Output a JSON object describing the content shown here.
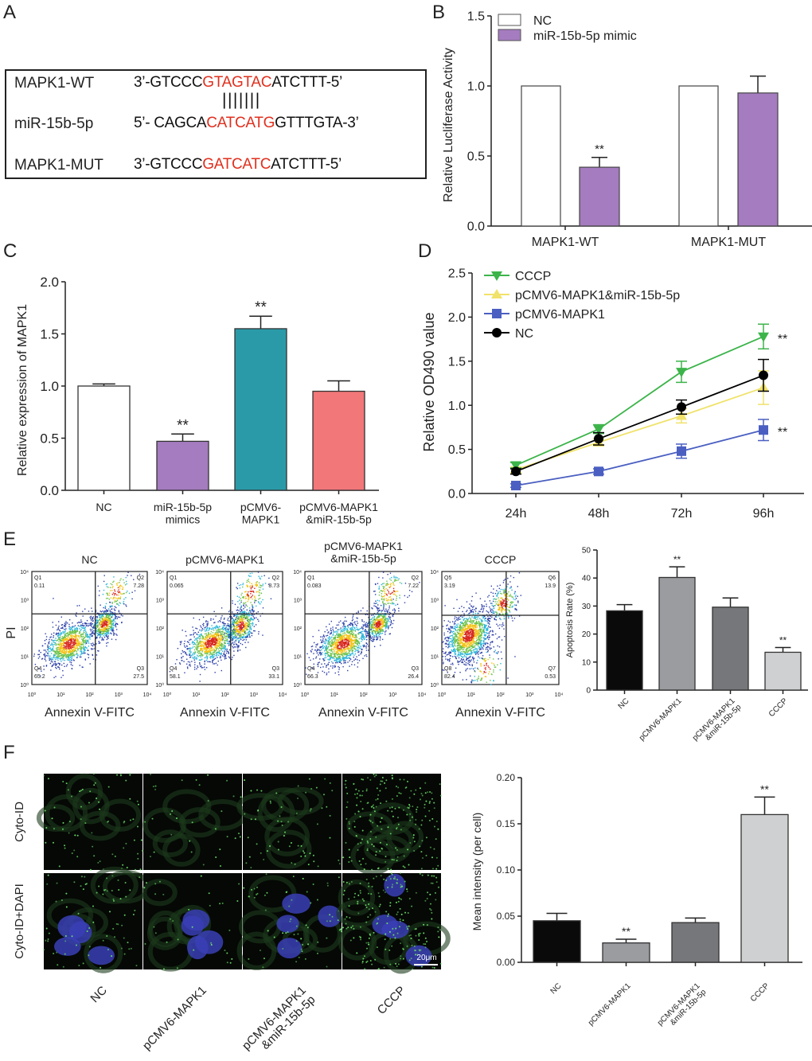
{
  "panel_labels": {
    "a": "A",
    "b": "B",
    "c": "C",
    "d": "D",
    "e": "E",
    "f": "F"
  },
  "sequences": [
    {
      "name": "MAPK1-WT",
      "prefix": "3’-GTCCC",
      "highlight": "GTAGTAC",
      "suffix": "ATCTTT-5’"
    },
    {
      "name": "miR-15b-5p",
      "prefix": "5’- CAGCA",
      "highlight": "CATCATG",
      "suffix": "GTTTGTA-3’"
    },
    {
      "name": "MAPK1-MUT",
      "prefix": "3’-GTCCC",
      "highlight": "GATCATC",
      "suffix": "ATCTTT-5’"
    }
  ],
  "pairing_marks": "|||||||",
  "colors": {
    "highlight": "#e0301e",
    "purple": "#a57cbf",
    "teal": "#2a9aa8",
    "salmon": "#f27779",
    "cccp": "#3cb44a",
    "combo": "#f0e26a",
    "mapk1": "#4a5fc1",
    "nc": "#000000"
  },
  "chart_data": [
    {
      "id": "B",
      "type": "bar",
      "ylabel": "Relative Lucliferase Activity",
      "ylim": [
        0,
        1.5
      ],
      "yticks": [
        "0.0",
        "0.5",
        "1.0",
        "1.5"
      ],
      "categories": [
        "MAPK1-WT",
        "MAPK1-MUT"
      ],
      "legend_position": "top-left",
      "series": [
        {
          "name": "NC",
          "values": [
            1.0,
            1.0
          ],
          "errors": [
            0,
            0
          ],
          "color": "#ffffff"
        },
        {
          "name": "miR-15b-5p mimic",
          "values": [
            0.42,
            0.95
          ],
          "errors": [
            0.07,
            0.12
          ],
          "color": "#a57cbf"
        }
      ],
      "significance": [
        {
          "category": "MAPK1-WT",
          "series": "miR-15b-5p mimic",
          "label": "**"
        }
      ]
    },
    {
      "id": "C",
      "type": "bar",
      "ylabel": "Relative expression of MAPK1",
      "ylim": [
        0,
        2.0
      ],
      "yticks": [
        "0.0",
        "0.5",
        "1.0",
        "1.5",
        "2.0"
      ],
      "categories": [
        "NC",
        "miR-15b-5p\nmimics",
        "pCMV6-\nMAPK1",
        "pCMV6-MAPK1\n&miR-15b-5p"
      ],
      "values": [
        1.0,
        0.47,
        1.55,
        0.95
      ],
      "errors": [
        0.02,
        0.07,
        0.12,
        0.1
      ],
      "colors": [
        "#ffffff",
        "#a57cbf",
        "#2a9aa8",
        "#f27779"
      ],
      "significance": [
        "",
        "**",
        "**",
        ""
      ]
    },
    {
      "id": "D",
      "type": "line",
      "ylabel": "Relative OD490 value",
      "ylim": [
        0,
        2.5
      ],
      "yticks": [
        "0.0",
        "0.5",
        "1.0",
        "1.5",
        "2.0",
        "2.5"
      ],
      "x": [
        "24h",
        "48h",
        "72h",
        "96h"
      ],
      "legend_position": "top-left",
      "series": [
        {
          "name": "CCCP",
          "values": [
            0.32,
            0.73,
            1.38,
            1.78
          ],
          "errors": [
            0.03,
            0.05,
            0.12,
            0.14
          ],
          "color": "#3cb44a",
          "marker": "triangle-down",
          "significance": "**"
        },
        {
          "name": "pCMV6-MAPK1&miR-15b-5p",
          "values": [
            0.27,
            0.58,
            0.88,
            1.2
          ],
          "errors": [
            0.03,
            0.04,
            0.08,
            0.19
          ],
          "color": "#f0e26a",
          "marker": "triangle-up",
          "significance": ""
        },
        {
          "name": "pCMV6-MAPK1",
          "values": [
            0.09,
            0.25,
            0.48,
            0.72
          ],
          "errors": [
            0.02,
            0.03,
            0.08,
            0.12
          ],
          "color": "#4a5fc1",
          "marker": "square",
          "significance": "**"
        },
        {
          "name": "NC",
          "values": [
            0.25,
            0.62,
            0.98,
            1.34
          ],
          "errors": [
            0.03,
            0.07,
            0.08,
            0.18
          ],
          "color": "#000000",
          "marker": "circle",
          "significance": ""
        }
      ]
    },
    {
      "id": "E",
      "type": "bar",
      "ylabel": "Apoptosis Rate (%)",
      "ylim": [
        0,
        50
      ],
      "yticks": [
        "0",
        "10",
        "20",
        "30",
        "40",
        "50"
      ],
      "categories": [
        "NC",
        "pCMV6-MAPK1",
        "pCMV6-MAPK1\n&miR-15b-5p",
        "CCCP"
      ],
      "values": [
        28.3,
        40.2,
        29.6,
        13.5
      ],
      "errors": [
        2.2,
        3.8,
        3.3,
        1.7
      ],
      "colors": [
        "#0a0a0a",
        "#9a9ca0",
        "#76777a",
        "#cfd0d2"
      ],
      "significance": [
        "",
        "**",
        "",
        "**"
      ]
    },
    {
      "id": "F",
      "type": "bar",
      "ylabel": "Mean intensity (per cell)",
      "ylim": [
        0,
        0.2
      ],
      "yticks": [
        "0.00",
        "0.05",
        "0.10",
        "0.15",
        "0.20"
      ],
      "categories": [
        "NC",
        "pCMV6-MAPK1",
        "pCMV6-MAPK1\n&miR-15b-5p",
        "CCCP"
      ],
      "values": [
        0.045,
        0.021,
        0.043,
        0.16
      ],
      "errors": [
        0.008,
        0.004,
        0.005,
        0.019
      ],
      "colors": [
        "#0a0a0a",
        "#9a9ca0",
        "#76777a",
        "#cfd0d2"
      ],
      "significance": [
        "",
        "**",
        "",
        "**"
      ]
    }
  ],
  "flow": {
    "y_label": "PI",
    "x_label": "Annexin V-FITC",
    "axis_ticks": [
      "10⁰",
      "10¹",
      "10²",
      "10³",
      "10⁴"
    ],
    "plots": [
      {
        "title": "NC",
        "quadrants": [
          {
            "name": "Q1",
            "value": "0.11"
          },
          {
            "name": "Q2",
            "value": "7.28"
          },
          {
            "name": "Q3",
            "value": "27.5"
          },
          {
            "name": "Q4",
            "value": "65.2"
          }
        ]
      },
      {
        "title": "pCMV6-MAPK1",
        "quadrants": [
          {
            "name": "Q1",
            "value": "0.065"
          },
          {
            "name": "Q2",
            "value": "8.73"
          },
          {
            "name": "Q3",
            "value": "33.1"
          },
          {
            "name": "Q4",
            "value": "58.1"
          }
        ]
      },
      {
        "title": "pCMV6-MAPK1\n&miR-15b-5p",
        "quadrants": [
          {
            "name": "Q1",
            "value": "0.083"
          },
          {
            "name": "Q2",
            "value": "7.22"
          },
          {
            "name": "Q3",
            "value": "26.4"
          },
          {
            "name": "Q4",
            "value": "66.3"
          }
        ]
      },
      {
        "title": "CCCP",
        "quadrants": [
          {
            "name": "Q5",
            "value": "3.19"
          },
          {
            "name": "Q6",
            "value": "13.9"
          },
          {
            "name": "Q7",
            "value": "0.53"
          },
          {
            "name": "Q8",
            "value": "82.4"
          }
        ]
      }
    ]
  },
  "microscopy": {
    "row_labels": [
      "Cyto-ID",
      "Cyto-ID+DAPI"
    ],
    "column_labels": [
      "NC",
      "pCMV6-MAPK1",
      "pCMV6-MAPK1\n&miR-15b-5p",
      "CCCP"
    ],
    "scale_bar": "20μm",
    "dot_density": [
      0.35,
      0.15,
      0.3,
      1.0
    ]
  }
}
